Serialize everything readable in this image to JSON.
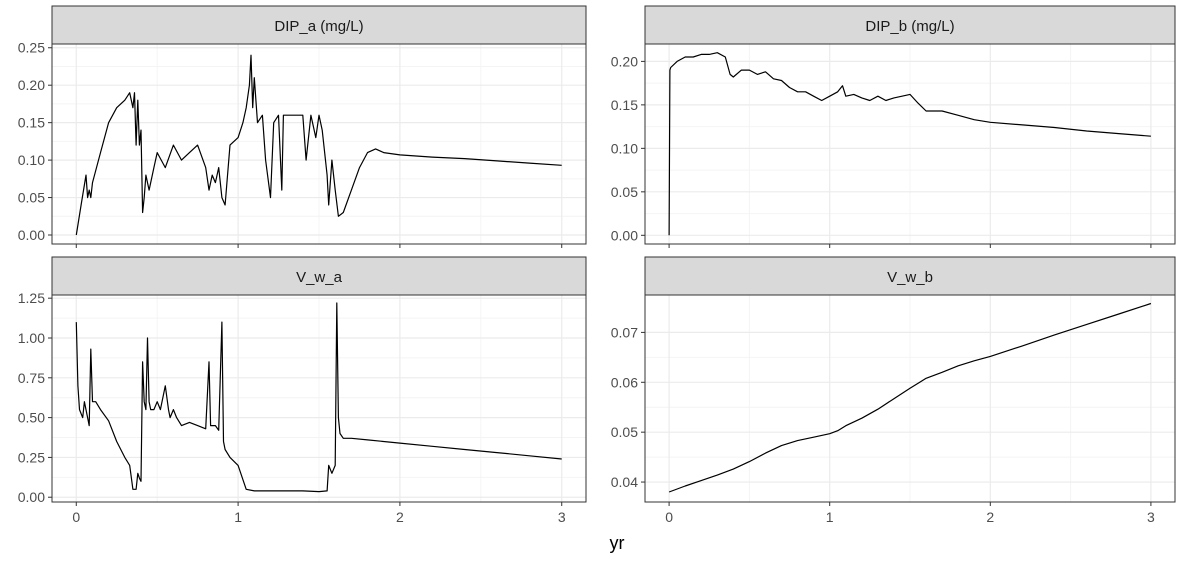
{
  "figure": {
    "xlabel": "yr"
  },
  "colors": {
    "strip_fill": "#d9d9d9",
    "panel_border": "#333333",
    "grid_major": "#ebebeb",
    "grid_minor": "#f4f4f4",
    "line": "#000000",
    "tick_label": "#4d4d4d"
  },
  "chart_data": [
    {
      "type": "line",
      "title": "DIP_a (mg/L)",
      "xlim": [
        -0.15,
        3.15
      ],
      "ylim": [
        -0.012,
        0.255
      ],
      "xticks": [
        0,
        1,
        2,
        3
      ],
      "yticks": [
        0.0,
        0.05,
        0.1,
        0.15,
        0.2,
        0.25
      ],
      "ytick_labels": [
        "0.00",
        "0.05",
        "0.10",
        "0.15",
        "0.20",
        "0.25"
      ],
      "grid": true,
      "x": [
        0,
        0.03,
        0.06,
        0.07,
        0.08,
        0.09,
        0.1,
        0.15,
        0.2,
        0.25,
        0.3,
        0.33,
        0.35,
        0.36,
        0.37,
        0.38,
        0.39,
        0.4,
        0.41,
        0.42,
        0.43,
        0.45,
        0.48,
        0.5,
        0.55,
        0.6,
        0.65,
        0.7,
        0.75,
        0.8,
        0.82,
        0.84,
        0.86,
        0.88,
        0.9,
        0.92,
        0.95,
        1.0,
        1.03,
        1.05,
        1.07,
        1.08,
        1.09,
        1.1,
        1.12,
        1.15,
        1.17,
        1.2,
        1.22,
        1.25,
        1.27,
        1.28,
        1.3,
        1.35,
        1.4,
        1.42,
        1.45,
        1.48,
        1.5,
        1.52,
        1.55,
        1.56,
        1.58,
        1.6,
        1.62,
        1.65,
        1.7,
        1.75,
        1.8,
        1.85,
        1.9,
        2.0,
        2.2,
        2.4,
        2.6,
        2.8,
        3.0
      ],
      "y": [
        0.0,
        0.04,
        0.08,
        0.05,
        0.06,
        0.05,
        0.07,
        0.11,
        0.15,
        0.17,
        0.18,
        0.19,
        0.17,
        0.19,
        0.12,
        0.18,
        0.12,
        0.14,
        0.03,
        0.05,
        0.08,
        0.06,
        0.09,
        0.11,
        0.09,
        0.12,
        0.1,
        0.11,
        0.12,
        0.09,
        0.06,
        0.08,
        0.07,
        0.09,
        0.05,
        0.04,
        0.12,
        0.13,
        0.15,
        0.17,
        0.2,
        0.24,
        0.17,
        0.21,
        0.15,
        0.16,
        0.1,
        0.05,
        0.15,
        0.16,
        0.06,
        0.16,
        0.16,
        0.16,
        0.16,
        0.1,
        0.16,
        0.13,
        0.16,
        0.14,
        0.08,
        0.04,
        0.1,
        0.06,
        0.025,
        0.03,
        0.06,
        0.09,
        0.11,
        0.115,
        0.11,
        0.107,
        0.104,
        0.102,
        0.099,
        0.096,
        0.093
      ]
    },
    {
      "type": "line",
      "title": "DIP_b (mg/L)",
      "xlim": [
        -0.15,
        3.15
      ],
      "ylim": [
        -0.01,
        0.22
      ],
      "xticks": [
        0,
        1,
        2,
        3
      ],
      "yticks": [
        0.0,
        0.05,
        0.1,
        0.15,
        0.2
      ],
      "ytick_labels": [
        "0.00",
        "0.05",
        "0.10",
        "0.15",
        "0.20"
      ],
      "grid": true,
      "x": [
        0,
        0.005,
        0.01,
        0.05,
        0.1,
        0.15,
        0.2,
        0.25,
        0.3,
        0.35,
        0.38,
        0.4,
        0.45,
        0.5,
        0.55,
        0.6,
        0.65,
        0.7,
        0.75,
        0.8,
        0.85,
        0.9,
        0.95,
        1.0,
        1.05,
        1.08,
        1.1,
        1.15,
        1.2,
        1.25,
        1.3,
        1.35,
        1.4,
        1.45,
        1.5,
        1.55,
        1.6,
        1.7,
        1.8,
        1.9,
        2.0,
        2.2,
        2.4,
        2.6,
        2.8,
        3.0
      ],
      "y": [
        0.0,
        0.19,
        0.193,
        0.2,
        0.205,
        0.205,
        0.208,
        0.208,
        0.21,
        0.205,
        0.185,
        0.182,
        0.19,
        0.19,
        0.185,
        0.188,
        0.18,
        0.178,
        0.17,
        0.165,
        0.165,
        0.16,
        0.155,
        0.16,
        0.165,
        0.172,
        0.16,
        0.162,
        0.158,
        0.155,
        0.16,
        0.155,
        0.158,
        0.16,
        0.162,
        0.152,
        0.143,
        0.143,
        0.138,
        0.133,
        0.13,
        0.127,
        0.124,
        0.12,
        0.117,
        0.114
      ]
    },
    {
      "type": "line",
      "title": "V_w_a",
      "xlim": [
        -0.15,
        3.15
      ],
      "ylim": [
        -0.03,
        1.27
      ],
      "xticks": [
        0,
        1,
        2,
        3
      ],
      "yticks": [
        0.0,
        0.25,
        0.5,
        0.75,
        1.0,
        1.25
      ],
      "ytick_labels": [
        "0.00",
        "0.25",
        "0.50",
        "0.75",
        "1.00",
        "1.25"
      ],
      "grid": true,
      "x": [
        0,
        0.01,
        0.02,
        0.04,
        0.05,
        0.07,
        0.08,
        0.09,
        0.1,
        0.12,
        0.15,
        0.2,
        0.25,
        0.3,
        0.33,
        0.35,
        0.37,
        0.38,
        0.39,
        0.4,
        0.41,
        0.42,
        0.43,
        0.44,
        0.45,
        0.46,
        0.48,
        0.5,
        0.52,
        0.55,
        0.57,
        0.58,
        0.6,
        0.62,
        0.65,
        0.7,
        0.75,
        0.8,
        0.82,
        0.83,
        0.84,
        0.86,
        0.88,
        0.9,
        0.91,
        0.92,
        0.95,
        1.0,
        1.05,
        1.1,
        1.2,
        1.3,
        1.4,
        1.5,
        1.55,
        1.56,
        1.58,
        1.6,
        1.61,
        1.62,
        1.63,
        1.65,
        1.7,
        1.8,
        2.0,
        2.2,
        2.4,
        2.6,
        2.8,
        3.0
      ],
      "y": [
        1.1,
        0.7,
        0.55,
        0.5,
        0.6,
        0.5,
        0.45,
        0.93,
        0.6,
        0.6,
        0.55,
        0.48,
        0.35,
        0.25,
        0.2,
        0.05,
        0.05,
        0.15,
        0.12,
        0.1,
        0.85,
        0.6,
        0.55,
        1.0,
        0.6,
        0.55,
        0.55,
        0.6,
        0.55,
        0.7,
        0.55,
        0.5,
        0.55,
        0.5,
        0.45,
        0.47,
        0.45,
        0.43,
        0.85,
        0.45,
        0.45,
        0.45,
        0.42,
        1.1,
        0.35,
        0.3,
        0.25,
        0.2,
        0.05,
        0.04,
        0.04,
        0.04,
        0.04,
        0.035,
        0.04,
        0.2,
        0.15,
        0.2,
        1.22,
        0.5,
        0.4,
        0.37,
        0.37,
        0.36,
        0.34,
        0.32,
        0.3,
        0.28,
        0.26,
        0.24
      ]
    },
    {
      "type": "line",
      "title": "V_w_b",
      "xlim": [
        -0.15,
        3.15
      ],
      "ylim": [
        0.036,
        0.0775
      ],
      "xticks": [
        0,
        1,
        2,
        3
      ],
      "yticks": [
        0.04,
        0.05,
        0.06,
        0.07
      ],
      "ytick_labels": [
        "0.04",
        "0.05",
        "0.06",
        "0.07"
      ],
      "grid": true,
      "x": [
        0,
        0.1,
        0.2,
        0.3,
        0.4,
        0.5,
        0.6,
        0.7,
        0.8,
        0.9,
        1.0,
        1.05,
        1.1,
        1.2,
        1.3,
        1.4,
        1.5,
        1.6,
        1.7,
        1.8,
        1.9,
        2.0,
        2.2,
        2.4,
        2.6,
        2.8,
        3.0
      ],
      "y": [
        0.038,
        0.0392,
        0.0403,
        0.0414,
        0.0426,
        0.0441,
        0.0458,
        0.0473,
        0.0483,
        0.049,
        0.0497,
        0.0503,
        0.0513,
        0.0528,
        0.0546,
        0.0567,
        0.0588,
        0.0608,
        0.062,
        0.0633,
        0.0643,
        0.0652,
        0.0673,
        0.0695,
        0.0716,
        0.0737,
        0.0758
      ]
    }
  ]
}
